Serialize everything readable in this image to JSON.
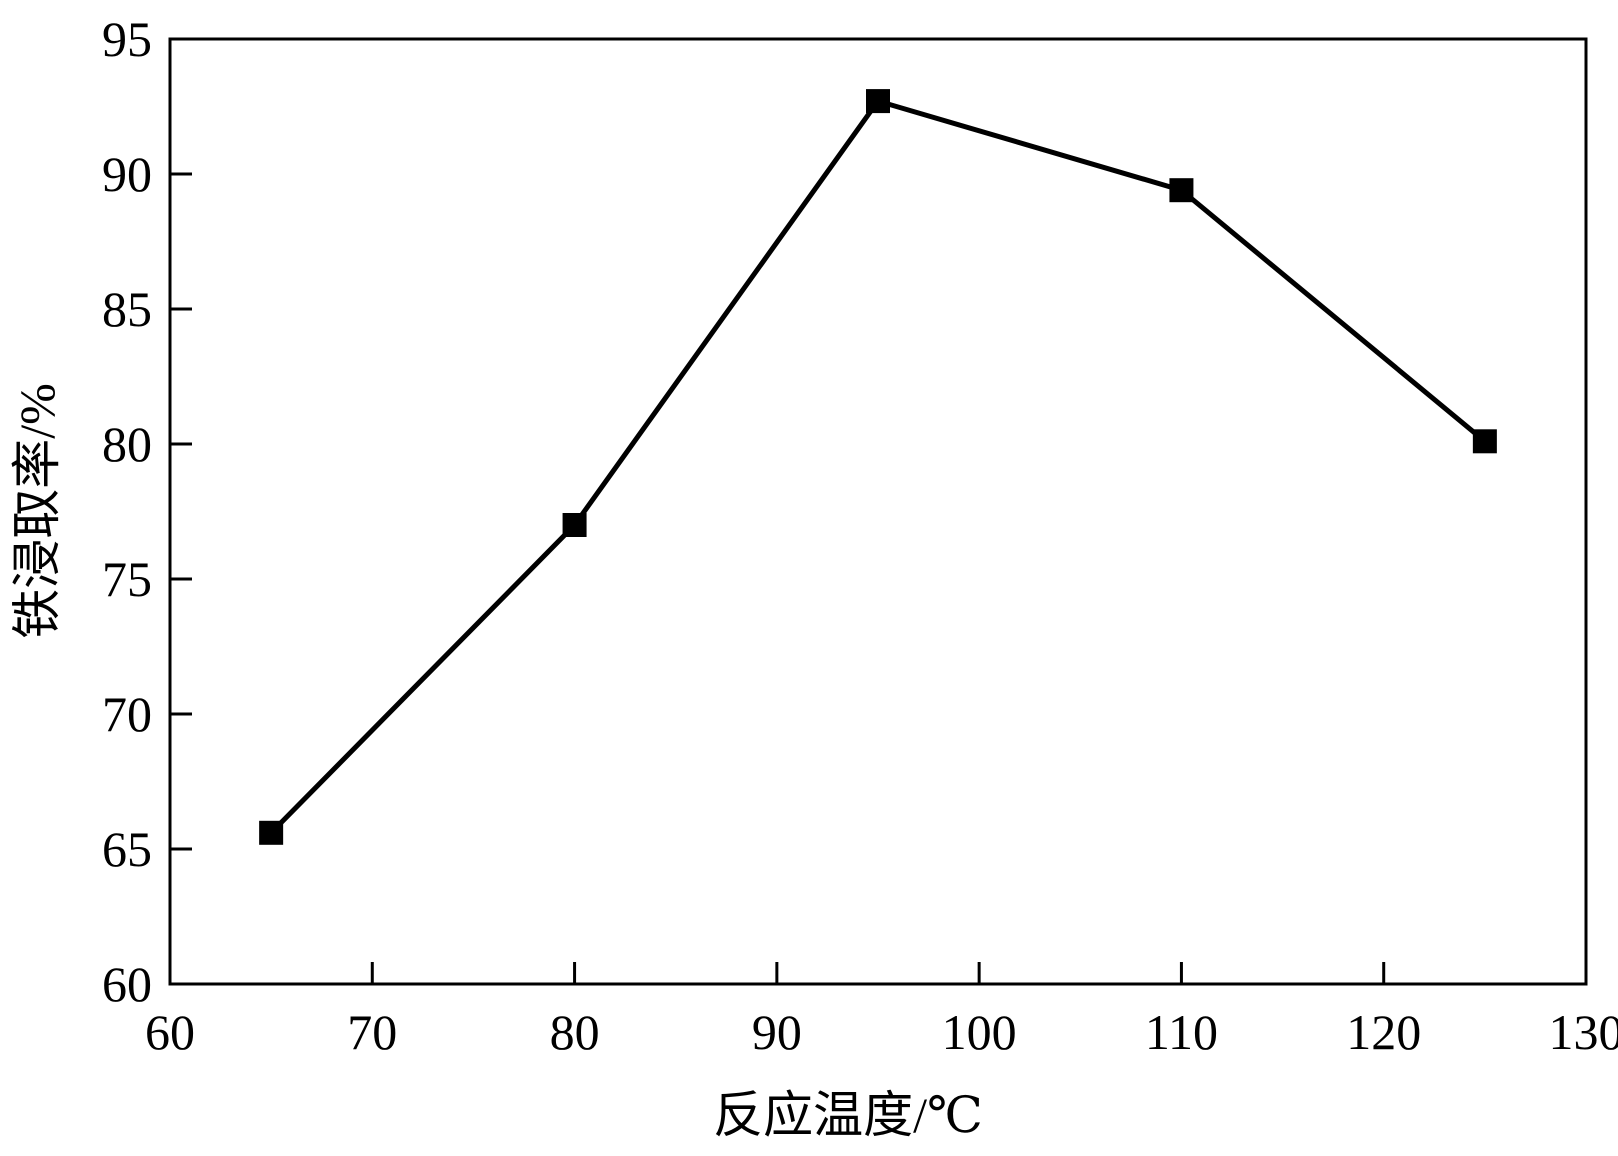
{
  "chart_data": {
    "type": "line",
    "title": "",
    "xlabel": "反应温度/℃",
    "ylabel": "铁浸取率/%",
    "xlim": [
      60,
      130
    ],
    "ylim": [
      60,
      95
    ],
    "xticks": [
      60,
      70,
      80,
      90,
      100,
      110,
      120,
      130
    ],
    "yticks": [
      60,
      65,
      70,
      75,
      80,
      85,
      90,
      95
    ],
    "grid": false,
    "legend": "none",
    "marker": "filled-square",
    "series": [
      {
        "x": [
          65,
          80,
          95,
          110,
          125
        ],
        "y": [
          65.6,
          77.0,
          92.7,
          89.4,
          80.1
        ],
        "color": "#000000"
      }
    ]
  }
}
